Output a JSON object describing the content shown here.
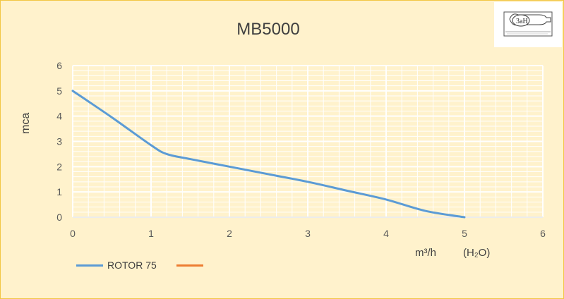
{
  "chart_data": {
    "type": "line",
    "title": "MB5000",
    "ylabel": "mca",
    "xlabel_unit": "m³/h",
    "xlabel_fluid": "(H₂O)",
    "xlim": [
      0,
      6
    ],
    "ylim": [
      0,
      6
    ],
    "xticks": [
      0,
      1,
      2,
      3,
      4,
      5,
      6
    ],
    "yticks": [
      0,
      1,
      2,
      3,
      4,
      5,
      6
    ],
    "grid": true,
    "legend_position": "bottom-left",
    "series": [
      {
        "name": "ROTOR 75",
        "color": "#5b9bd5",
        "x": [
          0,
          0.5,
          1.0,
          1.2,
          1.5,
          2.0,
          2.5,
          3.0,
          3.5,
          4.0,
          4.5,
          5.0
        ],
        "y": [
          5.0,
          3.95,
          2.85,
          2.5,
          2.3,
          2.0,
          1.7,
          1.4,
          1.05,
          0.7,
          0.25,
          0.0
        ]
      },
      {
        "name": "",
        "color": "#ed7d31",
        "x": [],
        "y": []
      }
    ]
  },
  "logo": {
    "text": "3aH",
    "icon": "pump-logo-icon"
  }
}
